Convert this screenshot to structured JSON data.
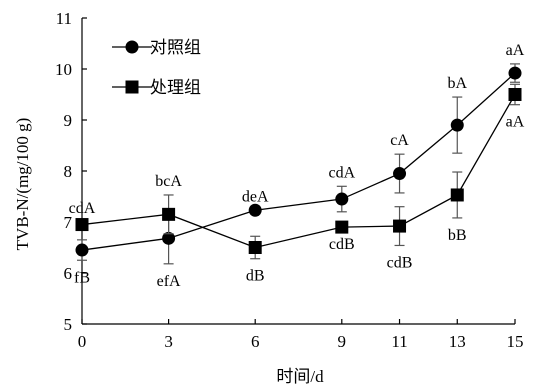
{
  "chart_data": {
    "type": "line",
    "xlabel": "时间/d",
    "ylabel": "TVB-N/(mg/100 g)",
    "x": [
      0,
      3,
      6,
      9,
      11,
      13,
      15
    ],
    "ylim": [
      5,
      11
    ],
    "yticks": [
      5,
      6,
      7,
      8,
      9,
      10,
      11
    ],
    "grid": false,
    "legend_position": "top-left",
    "series": [
      {
        "name": "对照组",
        "marker": "circle",
        "color": "#000000",
        "values": [
          6.45,
          6.68,
          7.23,
          7.45,
          7.95,
          8.9,
          9.92
        ],
        "errors": [
          0.2,
          0.5,
          0.0,
          0.25,
          0.38,
          0.55,
          0.18
        ],
        "annotations": [
          "fB",
          "efA",
          "deA",
          "cdA",
          "cA",
          "bA",
          "aA"
        ],
        "annotation_positions": [
          "below",
          "below",
          "above",
          "above",
          "above",
          "above",
          "above"
        ]
      },
      {
        "name": "处理组",
        "marker": "square",
        "color": "#000000",
        "values": [
          6.95,
          7.15,
          6.5,
          6.9,
          6.92,
          7.53,
          9.5
        ],
        "errors": [
          0.05,
          0.38,
          0.22,
          0.0,
          0.38,
          0.45,
          0.2
        ],
        "annotations": [
          "cdA",
          "bcA",
          "dB",
          "cdB",
          "cdB",
          "bB",
          "aA"
        ],
        "annotation_positions": [
          "above",
          "above",
          "below",
          "below",
          "below",
          "below",
          "below"
        ]
      }
    ]
  }
}
